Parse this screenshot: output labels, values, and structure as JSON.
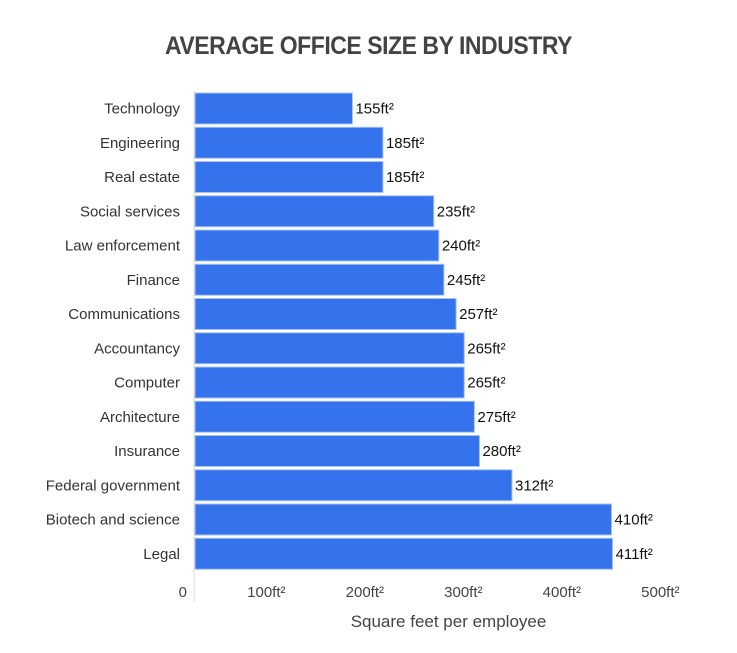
{
  "chart_data": {
    "type": "bar",
    "orientation": "horizontal",
    "title": "AVERAGE OFFICE SIZE BY INDUSTRY",
    "xlabel": "Square feet per employee",
    "ylabel": "",
    "categories": [
      "Technology",
      "Engineering",
      "Real estate",
      "Social services",
      "Law enforcement",
      "Finance",
      "Communications",
      "Accountancy",
      "Computer",
      "Architecture",
      "Insurance",
      "Federal government",
      "Biotech and science",
      "Legal"
    ],
    "values": [
      155,
      185,
      185,
      235,
      240,
      245,
      257,
      265,
      265,
      275,
      280,
      312,
      410,
      411
    ],
    "value_labels": [
      "155ft²",
      "185ft²",
      "185ft²",
      "235ft²",
      "240ft²",
      "245ft²",
      "257ft²",
      "265ft²",
      "265ft²",
      "275ft²",
      "280ft²",
      "312ft²",
      "410ft²",
      "411ft²"
    ],
    "xticks": [
      "0",
      "100ft²",
      "200ft²",
      "300ft²",
      "400ft²",
      "500ft²"
    ],
    "xlim": [
      0,
      500
    ],
    "grid": false,
    "bar_color": "#3473EB"
  }
}
